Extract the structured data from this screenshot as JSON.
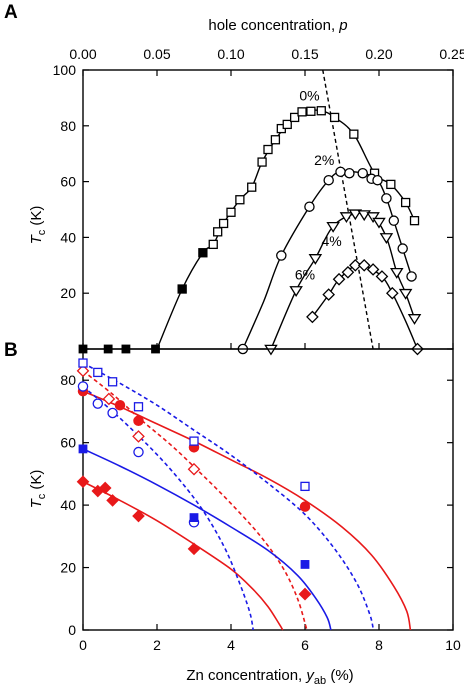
{
  "chart_data": [
    {
      "panel_label": "A",
      "type": "line",
      "xlabel_text": "hole concentration,",
      "xlabel_var": "p",
      "ylabel_main": "T",
      "ylabel_sub": "c",
      "ylabel_unit": " (K)",
      "xlim": [
        0,
        0.25
      ],
      "ylim": [
        0,
        100
      ],
      "x_ticks": [
        0,
        0.05,
        0.1,
        0.15,
        0.2,
        0.25
      ],
      "x_tick_labels": [
        "0.00",
        "0.05",
        "0.10",
        "0.15",
        "0.20",
        "0.25"
      ],
      "y_ticks": [
        0,
        20,
        40,
        60,
        80,
        100
      ],
      "y_tick_labels": [
        "0",
        "20",
        "40",
        "60",
        "80",
        "100"
      ],
      "grid": false,
      "series": [
        {
          "name": "0%",
          "marker": "square-open",
          "label_at": [
            0.153,
            89
          ],
          "points": [
            [
              0.067,
              21.5
            ],
            [
              0.081,
              34.5
            ],
            [
              0.088,
              37.5
            ],
            [
              0.091,
              42
            ],
            [
              0.095,
              45
            ],
            [
              0.1,
              49
            ],
            [
              0.106,
              53.5
            ],
            [
              0.114,
              58
            ],
            [
              0.121,
              67
            ],
            [
              0.125,
              71.5
            ],
            [
              0.13,
              75
            ],
            [
              0.134,
              79
            ],
            [
              0.138,
              80.5
            ],
            [
              0.143,
              83
            ],
            [
              0.148,
              85
            ],
            [
              0.154,
              85.2
            ],
            [
              0.161,
              85.4
            ],
            [
              0.17,
              83
            ],
            [
              0.183,
              77
            ],
            [
              0.197,
              63
            ],
            [
              0.208,
              59
            ],
            [
              0.218,
              52.5
            ],
            [
              0.224,
              46
            ]
          ],
          "filled_points": [
            [
              0,
              0
            ],
            [
              0.017,
              0
            ],
            [
              0.029,
              0
            ],
            [
              0.049,
              0
            ],
            [
              0.067,
              21.5
            ],
            [
              0.081,
              34.5
            ]
          ],
          "curve": [
            [
              0.05,
              0
            ],
            [
              0.067,
              21.5
            ],
            [
              0.081,
              34.5
            ],
            [
              0.088,
              37.5
            ],
            [
              0.095,
              45
            ],
            [
              0.106,
              53.5
            ],
            [
              0.114,
              58
            ],
            [
              0.121,
              67
            ],
            [
              0.13,
              75
            ],
            [
              0.138,
              80.5
            ],
            [
              0.148,
              85
            ],
            [
              0.161,
              85.4
            ],
            [
              0.17,
              83
            ],
            [
              0.183,
              77
            ],
            [
              0.197,
              63
            ],
            [
              0.208,
              59
            ],
            [
              0.218,
              52.5
            ],
            [
              0.224,
              46
            ]
          ]
        },
        {
          "name": "2%",
          "marker": "circle-open",
          "label_at": [
            0.163,
            66
          ],
          "points": [
            [
              0.108,
              0
            ],
            [
              0.134,
              33.5
            ],
            [
              0.153,
              51
            ],
            [
              0.166,
              60.5
            ],
            [
              0.174,
              63.5
            ],
            [
              0.18,
              63
            ],
            [
              0.189,
              63
            ],
            [
              0.195,
              61
            ],
            [
              0.199,
              60.5
            ],
            [
              0.205,
              54
            ],
            [
              0.21,
              46
            ],
            [
              0.216,
              36
            ],
            [
              0.222,
              26
            ]
          ],
          "curve": [
            [
              0.108,
              0
            ],
            [
              0.122,
              17
            ],
            [
              0.134,
              33.5
            ],
            [
              0.153,
              51
            ],
            [
              0.166,
              60.5
            ],
            [
              0.174,
              63.5
            ],
            [
              0.189,
              63
            ],
            [
              0.199,
              60.5
            ],
            [
              0.205,
              54
            ],
            [
              0.21,
              46
            ],
            [
              0.216,
              36
            ],
            [
              0.222,
              26
            ]
          ]
        },
        {
          "name": "4%",
          "marker": "triangle-open",
          "label_at": [
            0.168,
            37
          ],
          "points": [
            [
              0.127,
              0
            ],
            [
              0.144,
              21
            ],
            [
              0.157,
              32.5
            ],
            [
              0.169,
              44
            ],
            [
              0.178,
              47.5
            ],
            [
              0.184,
              48.5
            ],
            [
              0.19,
              48.2
            ],
            [
              0.196,
              47.5
            ],
            [
              0.2,
              45.5
            ],
            [
              0.205,
              40
            ],
            [
              0.212,
              27.5
            ],
            [
              0.218,
              20
            ],
            [
              0.224,
              11
            ]
          ],
          "curve": [
            [
              0.127,
              0
            ],
            [
              0.144,
              21
            ],
            [
              0.157,
              32.5
            ],
            [
              0.169,
              44
            ],
            [
              0.184,
              48.5
            ],
            [
              0.196,
              47.5
            ],
            [
              0.205,
              40
            ],
            [
              0.212,
              27.5
            ],
            [
              0.218,
              20
            ],
            [
              0.224,
              11
            ]
          ]
        },
        {
          "name": "6%",
          "marker": "diamond-open",
          "label_at": [
            0.15,
            25
          ],
          "points": [
            [
              0.155,
              11.5
            ],
            [
              0.166,
              19.5
            ],
            [
              0.173,
              25
            ],
            [
              0.179,
              27.5
            ],
            [
              0.184,
              30
            ],
            [
              0.19,
              30
            ],
            [
              0.196,
              28.5
            ],
            [
              0.202,
              26
            ],
            [
              0.209,
              20
            ],
            [
              0.226,
              0
            ]
          ],
          "curve": [
            [
              0.155,
              11.5
            ],
            [
              0.166,
              19.5
            ],
            [
              0.173,
              25
            ],
            [
              0.184,
              30
            ],
            [
              0.19,
              30
            ],
            [
              0.202,
              26
            ],
            [
              0.209,
              20
            ],
            [
              0.218,
              10
            ],
            [
              0.226,
              0
            ]
          ]
        }
      ],
      "dashed_line": [
        [
          0.162,
          100
        ],
        [
          0.196,
          0
        ]
      ]
    },
    {
      "panel_label": "B",
      "type": "scatter",
      "xlabel_text": "Zn concentration,",
      "xlabel_var": "y",
      "xlabel_var_sub": "ab",
      "xlabel_unit": " (%)",
      "ylabel_main": "T",
      "ylabel_sub": "c",
      "ylabel_unit": " (K)",
      "xlim": [
        0,
        10
      ],
      "ylim": [
        0,
        90
      ],
      "x_ticks": [
        0,
        2,
        4,
        6,
        8,
        10
      ],
      "x_tick_labels": [
        "0",
        "2",
        "4",
        "6",
        "8",
        "10"
      ],
      "y_ticks": [
        0,
        20,
        40,
        60,
        80
      ],
      "y_tick_labels": [
        "0",
        "20",
        "40",
        "60",
        "80"
      ],
      "grid": false,
      "series": [
        {
          "color": "#e8191a",
          "marker": "circle-filled",
          "line": "solid",
          "points": [
            [
              0,
              76.5
            ],
            [
              1,
              72
            ],
            [
              1.5,
              67
            ],
            [
              3,
              58.5
            ],
            [
              6,
              39.5
            ]
          ],
          "curve": [
            [
              0,
              76.5
            ],
            [
              1,
              71.5
            ],
            [
              2,
              66
            ],
            [
              3,
              60.5
            ],
            [
              4,
              54.5
            ],
            [
              5,
              48.5
            ],
            [
              6,
              41.5
            ],
            [
              7,
              33
            ],
            [
              7.8,
              24
            ],
            [
              8.4,
              14
            ],
            [
              8.75,
              6
            ],
            [
              8.85,
              0
            ]
          ]
        },
        {
          "color": "#e8191a",
          "marker": "diamond-open",
          "line": "dashed",
          "points": [
            [
              0,
              83
            ],
            [
              0.7,
              74
            ],
            [
              1.5,
              62
            ],
            [
              3,
              51.5
            ],
            [
              6,
              11.5
            ]
          ],
          "curve": [
            [
              0,
              83
            ],
            [
              0.8,
              75.5
            ],
            [
              1.6,
              67
            ],
            [
              2.4,
              59
            ],
            [
              3.2,
              50
            ],
            [
              4,
              40.5
            ],
            [
              4.8,
              30
            ],
            [
              5.4,
              20
            ],
            [
              5.8,
              10
            ],
            [
              6.05,
              0
            ]
          ]
        },
        {
          "color": "#e8191a",
          "marker": "diamond-filled",
          "line": "solid",
          "points": [
            [
              0,
              47.5
            ],
            [
              0.4,
              44.5
            ],
            [
              0.6,
              45.5
            ],
            [
              0.8,
              41.5
            ],
            [
              1.5,
              36.5
            ],
            [
              3,
              26
            ],
            [
              6,
              11.5
            ]
          ],
          "curve": [
            [
              0,
              47.5
            ],
            [
              1,
              41.5
            ],
            [
              2,
              35
            ],
            [
              3,
              27.5
            ],
            [
              4,
              19.5
            ],
            [
              4.6,
              13
            ],
            [
              5,
              7.5
            ],
            [
              5.3,
              2
            ],
            [
              5.4,
              0
            ]
          ]
        },
        {
          "color": "#1a1ae6",
          "marker": "square-open",
          "line": "dashed",
          "points": [
            [
              0,
              85.5
            ],
            [
              0.4,
              82.5
            ],
            [
              0.8,
              79.5
            ],
            [
              1.5,
              71.5
            ],
            [
              3,
              60.5
            ],
            [
              6,
              46
            ]
          ],
          "curve": [
            [
              0,
              85.5
            ],
            [
              1,
              79
            ],
            [
              2,
              72
            ],
            [
              3,
              64
            ],
            [
              4,
              56
            ],
            [
              5,
              47
            ],
            [
              6,
              37
            ],
            [
              6.8,
              26
            ],
            [
              7.4,
              15
            ],
            [
              7.75,
              5
            ],
            [
              7.85,
              0
            ]
          ]
        },
        {
          "color": "#1a1ae6",
          "marker": "circle-open",
          "line": "dashed",
          "points": [
            [
              0,
              78
            ],
            [
              0.4,
              72.5
            ],
            [
              0.8,
              69.5
            ],
            [
              1.5,
              57
            ],
            [
              3,
              34.5
            ]
          ],
          "curve": [
            [
              0,
              78
            ],
            [
              0.8,
              70
            ],
            [
              1.6,
              61
            ],
            [
              2.4,
              51
            ],
            [
              3.2,
              39
            ],
            [
              3.8,
              27
            ],
            [
              4.2,
              16
            ],
            [
              4.5,
              6
            ],
            [
              4.6,
              0
            ]
          ]
        },
        {
          "color": "#1a1ae6",
          "marker": "square-filled",
          "line": "solid",
          "points": [
            [
              0,
              58
            ],
            [
              3,
              36
            ],
            [
              6,
              21
            ]
          ],
          "curve": [
            [
              0,
              58
            ],
            [
              1,
              52.5
            ],
            [
              2,
              46.5
            ],
            [
              3,
              40
            ],
            [
              4,
              33
            ],
            [
              5,
              25.5
            ],
            [
              5.8,
              17.5
            ],
            [
              6.3,
              10
            ],
            [
              6.6,
              4
            ],
            [
              6.7,
              0
            ]
          ]
        }
      ]
    }
  ]
}
